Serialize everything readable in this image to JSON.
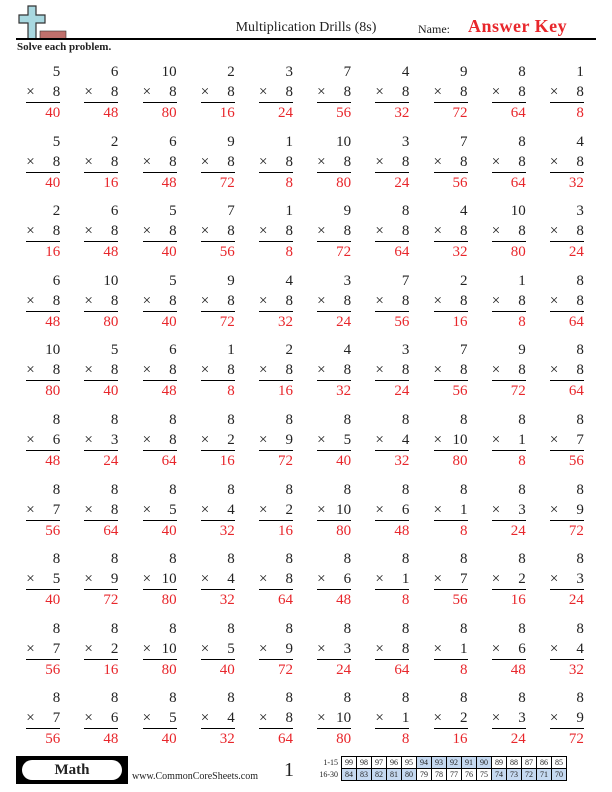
{
  "header": {
    "title": "Multiplication Drills (8s)",
    "name_label": "Name:",
    "answer_key": "Answer Key"
  },
  "instructions": "Solve each problem.",
  "operator": "×",
  "problems": [
    [
      [
        5,
        8,
        40
      ],
      [
        6,
        8,
        48
      ],
      [
        10,
        8,
        80
      ],
      [
        2,
        8,
        16
      ],
      [
        3,
        8,
        24
      ],
      [
        7,
        8,
        56
      ],
      [
        4,
        8,
        32
      ],
      [
        9,
        8,
        72
      ],
      [
        8,
        8,
        64
      ],
      [
        1,
        8,
        8
      ]
    ],
    [
      [
        5,
        8,
        40
      ],
      [
        2,
        8,
        16
      ],
      [
        6,
        8,
        48
      ],
      [
        9,
        8,
        72
      ],
      [
        1,
        8,
        8
      ],
      [
        10,
        8,
        80
      ],
      [
        3,
        8,
        24
      ],
      [
        7,
        8,
        56
      ],
      [
        8,
        8,
        64
      ],
      [
        4,
        8,
        32
      ]
    ],
    [
      [
        2,
        8,
        16
      ],
      [
        6,
        8,
        48
      ],
      [
        5,
        8,
        40
      ],
      [
        7,
        8,
        56
      ],
      [
        1,
        8,
        8
      ],
      [
        9,
        8,
        72
      ],
      [
        8,
        8,
        64
      ],
      [
        4,
        8,
        32
      ],
      [
        10,
        8,
        80
      ],
      [
        3,
        8,
        24
      ]
    ],
    [
      [
        6,
        8,
        48
      ],
      [
        10,
        8,
        80
      ],
      [
        5,
        8,
        40
      ],
      [
        9,
        8,
        72
      ],
      [
        4,
        8,
        32
      ],
      [
        3,
        8,
        24
      ],
      [
        7,
        8,
        56
      ],
      [
        2,
        8,
        16
      ],
      [
        1,
        8,
        8
      ],
      [
        8,
        8,
        64
      ]
    ],
    [
      [
        10,
        8,
        80
      ],
      [
        5,
        8,
        40
      ],
      [
        6,
        8,
        48
      ],
      [
        1,
        8,
        8
      ],
      [
        2,
        8,
        16
      ],
      [
        4,
        8,
        32
      ],
      [
        3,
        8,
        24
      ],
      [
        7,
        8,
        56
      ],
      [
        9,
        8,
        72
      ],
      [
        8,
        8,
        64
      ]
    ],
    [
      [
        8,
        6,
        48
      ],
      [
        8,
        3,
        24
      ],
      [
        8,
        8,
        64
      ],
      [
        8,
        2,
        16
      ],
      [
        8,
        9,
        72
      ],
      [
        8,
        5,
        40
      ],
      [
        8,
        4,
        32
      ],
      [
        8,
        10,
        80
      ],
      [
        8,
        1,
        8
      ],
      [
        8,
        7,
        56
      ]
    ],
    [
      [
        8,
        7,
        56
      ],
      [
        8,
        8,
        64
      ],
      [
        8,
        5,
        40
      ],
      [
        8,
        4,
        32
      ],
      [
        8,
        2,
        16
      ],
      [
        8,
        10,
        80
      ],
      [
        8,
        6,
        48
      ],
      [
        8,
        1,
        8
      ],
      [
        8,
        3,
        24
      ],
      [
        8,
        9,
        72
      ]
    ],
    [
      [
        8,
        5,
        40
      ],
      [
        8,
        9,
        72
      ],
      [
        8,
        10,
        80
      ],
      [
        8,
        4,
        32
      ],
      [
        8,
        8,
        64
      ],
      [
        8,
        6,
        48
      ],
      [
        8,
        1,
        8
      ],
      [
        8,
        7,
        56
      ],
      [
        8,
        2,
        16
      ],
      [
        8,
        3,
        24
      ]
    ],
    [
      [
        8,
        7,
        56
      ],
      [
        8,
        2,
        16
      ],
      [
        8,
        10,
        80
      ],
      [
        8,
        5,
        40
      ],
      [
        8,
        9,
        72
      ],
      [
        8,
        3,
        24
      ],
      [
        8,
        8,
        64
      ],
      [
        8,
        1,
        8
      ],
      [
        8,
        6,
        48
      ],
      [
        8,
        4,
        32
      ]
    ],
    [
      [
        8,
        7,
        56
      ],
      [
        8,
        6,
        48
      ],
      [
        8,
        5,
        40
      ],
      [
        8,
        4,
        32
      ],
      [
        8,
        8,
        64
      ],
      [
        8,
        10,
        80
      ],
      [
        8,
        1,
        8
      ],
      [
        8,
        2,
        16
      ],
      [
        8,
        3,
        24
      ],
      [
        8,
        9,
        72
      ]
    ]
  ],
  "footer": {
    "subject": "Math",
    "site": "www.CommonCoreSheets.com",
    "page_number": "1",
    "score_rows": [
      {
        "label": "1-15",
        "scores": [
          99,
          98,
          97,
          96,
          95,
          94,
          93,
          92,
          91,
          90,
          89,
          88,
          87,
          86,
          85
        ],
        "highlighted": [
          94,
          93,
          92,
          91,
          90
        ]
      },
      {
        "label": "16-30",
        "scores": [
          84,
          83,
          82,
          81,
          80,
          79,
          78,
          77,
          76,
          75,
          74,
          73,
          72,
          71,
          70
        ],
        "highlighted": [
          84,
          83,
          82,
          81,
          80,
          74,
          73,
          72,
          71,
          70
        ]
      }
    ]
  },
  "colors": {
    "answer": "#e8262b",
    "highlight": "#c5d9f1"
  }
}
